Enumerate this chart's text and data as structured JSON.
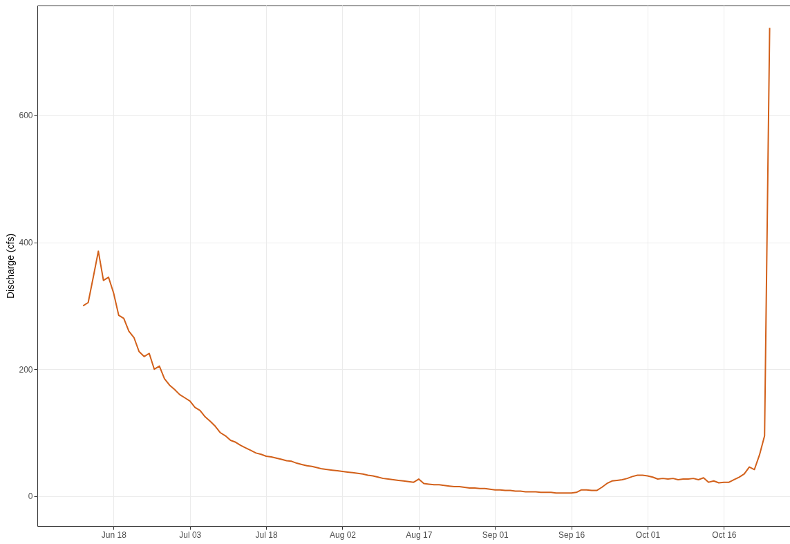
{
  "chart_data": {
    "type": "line",
    "ylabel": "Discharge (cfs)",
    "grid": true,
    "xlim": [
      "--06-03",
      "--10-29"
    ],
    "ylim": [
      -47,
      773
    ],
    "yticks": [
      0,
      200,
      400,
      600
    ],
    "xticks": [
      {
        "value": "--06-18",
        "label": "Jun 18"
      },
      {
        "value": "--07-03",
        "label": "Jul 03"
      },
      {
        "value": "--07-18",
        "label": "Jul 18"
      },
      {
        "value": "--08-02",
        "label": "Aug 02"
      },
      {
        "value": "--08-17",
        "label": "Aug 17"
      },
      {
        "value": "--09-01",
        "label": "Sep 01"
      },
      {
        "value": "--09-16",
        "label": "Sep 16"
      },
      {
        "value": "--10-01",
        "label": "Oct 01"
      },
      {
        "value": "--10-16",
        "label": "Oct 16"
      }
    ],
    "x": [
      "--06-12",
      "--06-13",
      "--06-14",
      "--06-15",
      "--06-16",
      "--06-17",
      "--06-18",
      "--06-19",
      "--06-20",
      "--06-21",
      "--06-22",
      "--06-23",
      "--06-24",
      "--06-25",
      "--06-26",
      "--06-27",
      "--06-28",
      "--06-29",
      "--06-30",
      "--07-01",
      "--07-02",
      "--07-03",
      "--07-04",
      "--07-05",
      "--07-06",
      "--07-07",
      "--07-08",
      "--07-09",
      "--07-10",
      "--07-11",
      "--07-12",
      "--07-13",
      "--07-14",
      "--07-15",
      "--07-16",
      "--07-17",
      "--07-18",
      "--07-19",
      "--07-20",
      "--07-21",
      "--07-22",
      "--07-23",
      "--07-24",
      "--07-25",
      "--07-26",
      "--07-27",
      "--07-28",
      "--07-29",
      "--07-30",
      "--07-31",
      "--08-01",
      "--08-02",
      "--08-03",
      "--08-04",
      "--08-05",
      "--08-06",
      "--08-07",
      "--08-08",
      "--08-09",
      "--08-10",
      "--08-11",
      "--08-12",
      "--08-13",
      "--08-14",
      "--08-15",
      "--08-16",
      "--08-17",
      "--08-18",
      "--08-19",
      "--08-20",
      "--08-21",
      "--08-22",
      "--08-23",
      "--08-24",
      "--08-25",
      "--08-26",
      "--08-27",
      "--08-28",
      "--08-29",
      "--08-30",
      "--08-31",
      "--09-01",
      "--09-02",
      "--09-03",
      "--09-04",
      "--09-05",
      "--09-06",
      "--09-07",
      "--09-08",
      "--09-09",
      "--09-10",
      "--09-11",
      "--09-12",
      "--09-13",
      "--09-14",
      "--09-15",
      "--09-16",
      "--09-17",
      "--09-18",
      "--09-19",
      "--09-20",
      "--09-21",
      "--09-22",
      "--09-23",
      "--09-24",
      "--09-25",
      "--09-26",
      "--09-27",
      "--09-28",
      "--09-29",
      "--09-30",
      "--10-01",
      "--10-02",
      "--10-03",
      "--10-04",
      "--10-05",
      "--10-06",
      "--10-07",
      "--10-08",
      "--10-09",
      "--10-10",
      "--10-11",
      "--10-12",
      "--10-13",
      "--10-14",
      "--10-15",
      "--10-16",
      "--10-17",
      "--10-18",
      "--10-19",
      "--10-20",
      "--10-21",
      "--10-22",
      "--10-23",
      "--10-24",
      "--10-25"
    ],
    "series": [
      {
        "color": "#d2601a",
        "values": [
          300,
          305,
          345,
          386,
          340,
          345,
          320,
          285,
          280,
          260,
          250,
          228,
          220,
          225,
          200,
          205,
          185,
          175,
          168,
          160,
          155,
          150,
          140,
          135,
          125,
          118,
          110,
          100,
          95,
          88,
          85,
          80,
          76,
          72,
          68,
          66,
          63,
          62,
          60,
          58,
          56,
          55,
          52,
          50,
          48,
          47,
          45,
          43,
          42,
          41,
          40,
          39,
          38,
          37,
          36,
          35,
          33,
          32,
          30,
          28,
          27,
          26,
          25,
          24,
          23,
          22,
          27,
          20,
          19,
          18,
          18,
          17,
          16,
          15,
          15,
          14,
          13,
          13,
          12,
          12,
          11,
          10,
          10,
          9,
          9,
          8,
          8,
          7,
          7,
          7,
          6,
          6,
          6,
          5,
          5,
          5,
          5,
          6,
          10,
          10,
          9,
          9,
          14,
          20,
          24,
          25,
          26,
          28,
          31,
          33,
          33,
          32,
          30,
          27,
          28,
          27,
          28,
          26,
          27,
          27,
          28,
          26,
          29,
          22,
          24,
          21,
          22,
          22,
          26,
          30,
          35,
          46,
          42,
          65,
          95,
          738
        ]
      }
    ]
  }
}
